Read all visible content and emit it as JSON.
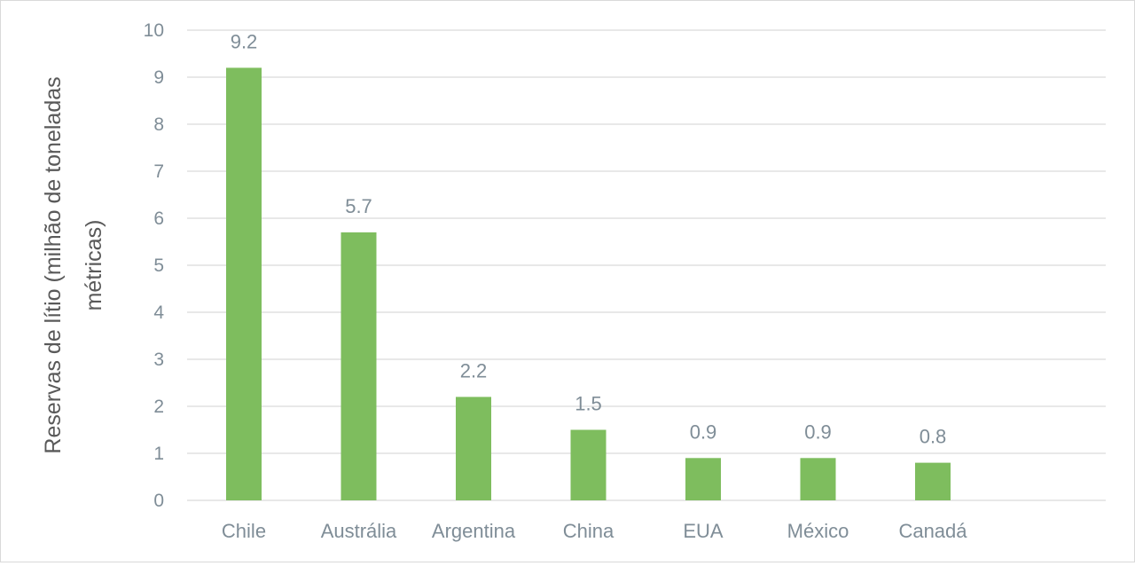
{
  "chart_data": {
    "type": "bar",
    "title": "",
    "xlabel": "",
    "ylabel_lines": [
      "Reservas de lítio (milhão de toneladas",
      "métricas)"
    ],
    "categories": [
      "Chile",
      "Austrália",
      "Argentina",
      "China",
      "EUA",
      "México",
      "Canadá"
    ],
    "values": [
      9.2,
      5.7,
      2.2,
      1.5,
      0.9,
      0.9,
      0.8
    ],
    "value_labels": [
      "9.2",
      "5.7",
      "2.2",
      "1.5",
      "0.9",
      "0.9",
      "0.8"
    ],
    "ylim": [
      0,
      10
    ],
    "yticks": [
      0,
      1,
      2,
      3,
      4,
      5,
      6,
      7,
      8,
      9,
      10
    ],
    "grid": true,
    "legend": "none",
    "colors": {
      "bar": "#7ebd5e",
      "grid": "#d9d9d9",
      "text": "#7f8d97",
      "axis_title": "#595959"
    }
  }
}
